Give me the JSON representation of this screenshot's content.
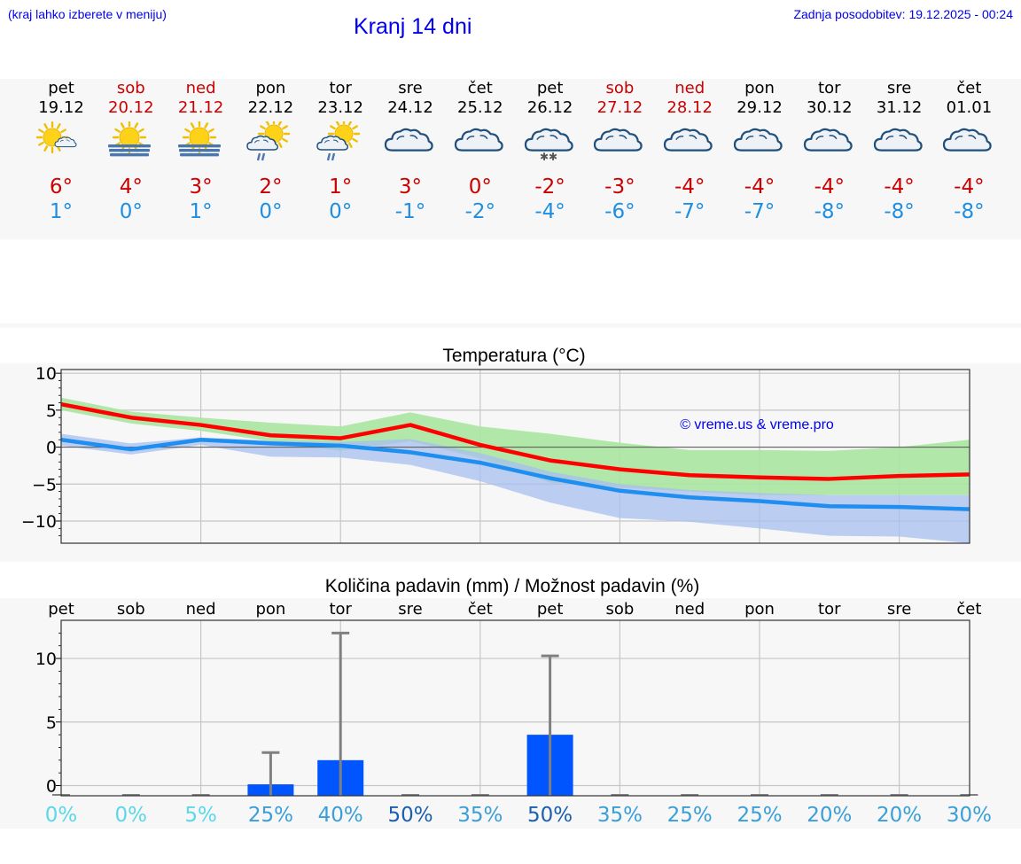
{
  "header": {
    "hint": "(kraj lahko izberete v meniju)",
    "title": "Kranj 14 dni",
    "updated": "Zadnja posodobitev: 19.12.2025 - 00:24"
  },
  "colors": {
    "weekday": "#000000",
    "weekend": "#cc0000",
    "max_line": "#ff0000",
    "min_line": "#1e8ff0",
    "max_band": "#a9e5a0",
    "min_band": "#a8bff0",
    "overlap_band": "#72bfa2",
    "bar": "#0055ff",
    "whisker": "#808080"
  },
  "days": [
    {
      "name": "pet",
      "date": "19.12",
      "weekend": false,
      "icon": "sun-cloud-icon",
      "max": "6°",
      "min": "1°"
    },
    {
      "name": "sob",
      "date": "20.12",
      "weekend": true,
      "icon": "sun-fog-icon",
      "max": "4°",
      "min": "0°"
    },
    {
      "name": "ned",
      "date": "21.12",
      "weekend": true,
      "icon": "sun-fog-icon",
      "max": "3°",
      "min": "1°"
    },
    {
      "name": "pon",
      "date": "22.12",
      "weekend": false,
      "icon": "sun-cloud-rain-icon",
      "max": "2°",
      "min": "0°"
    },
    {
      "name": "tor",
      "date": "23.12",
      "weekend": false,
      "icon": "sun-cloud-rain-icon",
      "max": "1°",
      "min": "0°"
    },
    {
      "name": "sre",
      "date": "24.12",
      "weekend": false,
      "icon": "cloudy-icon",
      "max": "3°",
      "min": "-1°"
    },
    {
      "name": "čet",
      "date": "25.12",
      "weekend": false,
      "icon": "cloudy-icon",
      "max": "0°",
      "min": "-2°"
    },
    {
      "name": "pet",
      "date": "26.12",
      "weekend": false,
      "icon": "cloudy-snow-icon",
      "max": "-2°",
      "min": "-4°"
    },
    {
      "name": "sob",
      "date": "27.12",
      "weekend": true,
      "icon": "cloudy-icon",
      "max": "-3°",
      "min": "-6°"
    },
    {
      "name": "ned",
      "date": "28.12",
      "weekend": true,
      "icon": "cloudy-icon",
      "max": "-4°",
      "min": "-7°"
    },
    {
      "name": "pon",
      "date": "29.12",
      "weekend": false,
      "icon": "cloudy-icon",
      "max": "-4°",
      "min": "-7°"
    },
    {
      "name": "tor",
      "date": "30.12",
      "weekend": false,
      "icon": "cloudy-icon",
      "max": "-4°",
      "min": "-8°"
    },
    {
      "name": "sre",
      "date": "31.12",
      "weekend": false,
      "icon": "cloudy-icon",
      "max": "-4°",
      "min": "-8°"
    },
    {
      "name": "čet",
      "date": "01.01",
      "weekend": false,
      "icon": "cloudy-icon",
      "max": "-4°",
      "min": "-8°"
    }
  ],
  "chart_data": [
    {
      "type": "line",
      "title": "Temperatura (°C)",
      "watermark": "© vreme.us & vreme.pro",
      "x": [
        1,
        2,
        3,
        4,
        5,
        6,
        7,
        8,
        9,
        10,
        11,
        12,
        13,
        14
      ],
      "ylim": [
        -13,
        10.5
      ],
      "yticks": [
        10,
        5,
        0,
        -5,
        -10
      ],
      "ytick_labels": [
        "10",
        "5",
        "0",
        "−5",
        "−10"
      ],
      "grid": true,
      "series": [
        {
          "name": "max",
          "values": [
            5.8,
            4.0,
            3.0,
            1.6,
            1.2,
            3.0,
            0.3,
            -1.8,
            -3.0,
            -3.8,
            -4.1,
            -4.3,
            -3.9,
            -3.7
          ],
          "band_low": [
            5.0,
            3.2,
            2.2,
            0.8,
            -0.5,
            0.8,
            -1.5,
            -4.8,
            -5.5,
            -6.0,
            -6.5,
            -6.5,
            -6.5,
            -6.5
          ],
          "band_high": [
            6.7,
            4.8,
            4.0,
            3.3,
            2.8,
            4.7,
            2.8,
            1.8,
            0.6,
            -0.4,
            -0.4,
            -0.5,
            0.0,
            1.0
          ]
        },
        {
          "name": "min",
          "values": [
            1.0,
            -0.3,
            1.0,
            0.5,
            0.2,
            -0.7,
            -2.1,
            -4.2,
            -5.9,
            -6.8,
            -7.3,
            -8.0,
            -8.1,
            -8.4
          ],
          "band_low": [
            0.2,
            -1.0,
            0.3,
            -1.3,
            -1.4,
            -2.4,
            -4.6,
            -7.5,
            -9.6,
            -10.1,
            -11.0,
            -12.0,
            -12.1,
            -13.0
          ],
          "band_high": [
            1.8,
            0.5,
            1.3,
            0.9,
            0.7,
            1.1,
            -0.8,
            -3.3,
            -5.0,
            -5.8,
            -6.2,
            -6.5,
            -6.5,
            -6.5
          ]
        }
      ]
    },
    {
      "type": "bar",
      "title": "Količina padavin (mm) / Možnost padavin (%)",
      "categories": [
        "pet",
        "sob",
        "ned",
        "pon",
        "tor",
        "sre",
        "čet",
        "pet",
        "sob",
        "ned",
        "pon",
        "tor",
        "sre",
        "čet"
      ],
      "values": [
        0,
        0,
        0,
        0.1,
        2.0,
        0,
        0,
        4.0,
        0,
        0,
        0,
        0,
        0,
        0
      ],
      "error_high": [
        0,
        0,
        0,
        2.6,
        12.0,
        0,
        0,
        10.2,
        0,
        0,
        0,
        0,
        0,
        0
      ],
      "ylim": [
        -0.8,
        13
      ],
      "yticks": [
        0,
        5,
        10
      ],
      "ytick_labels": [
        "0",
        "5",
        "10"
      ],
      "grid": true,
      "probability_labels": [
        "0%",
        "0%",
        "5%",
        "25%",
        "40%",
        "50%",
        "35%",
        "50%",
        "35%",
        "25%",
        "25%",
        "20%",
        "20%",
        "30%"
      ],
      "probability_colors": [
        "#5ad8e8",
        "#5ad8e8",
        "#5ad8e8",
        "#3a9fd8",
        "#3a9fd8",
        "#1b5fb0",
        "#3a9fd8",
        "#1b5fb0",
        "#3a9fd8",
        "#3a9fd8",
        "#3a9fd8",
        "#3a9fd8",
        "#3a9fd8",
        "#3a9fd8"
      ]
    }
  ]
}
